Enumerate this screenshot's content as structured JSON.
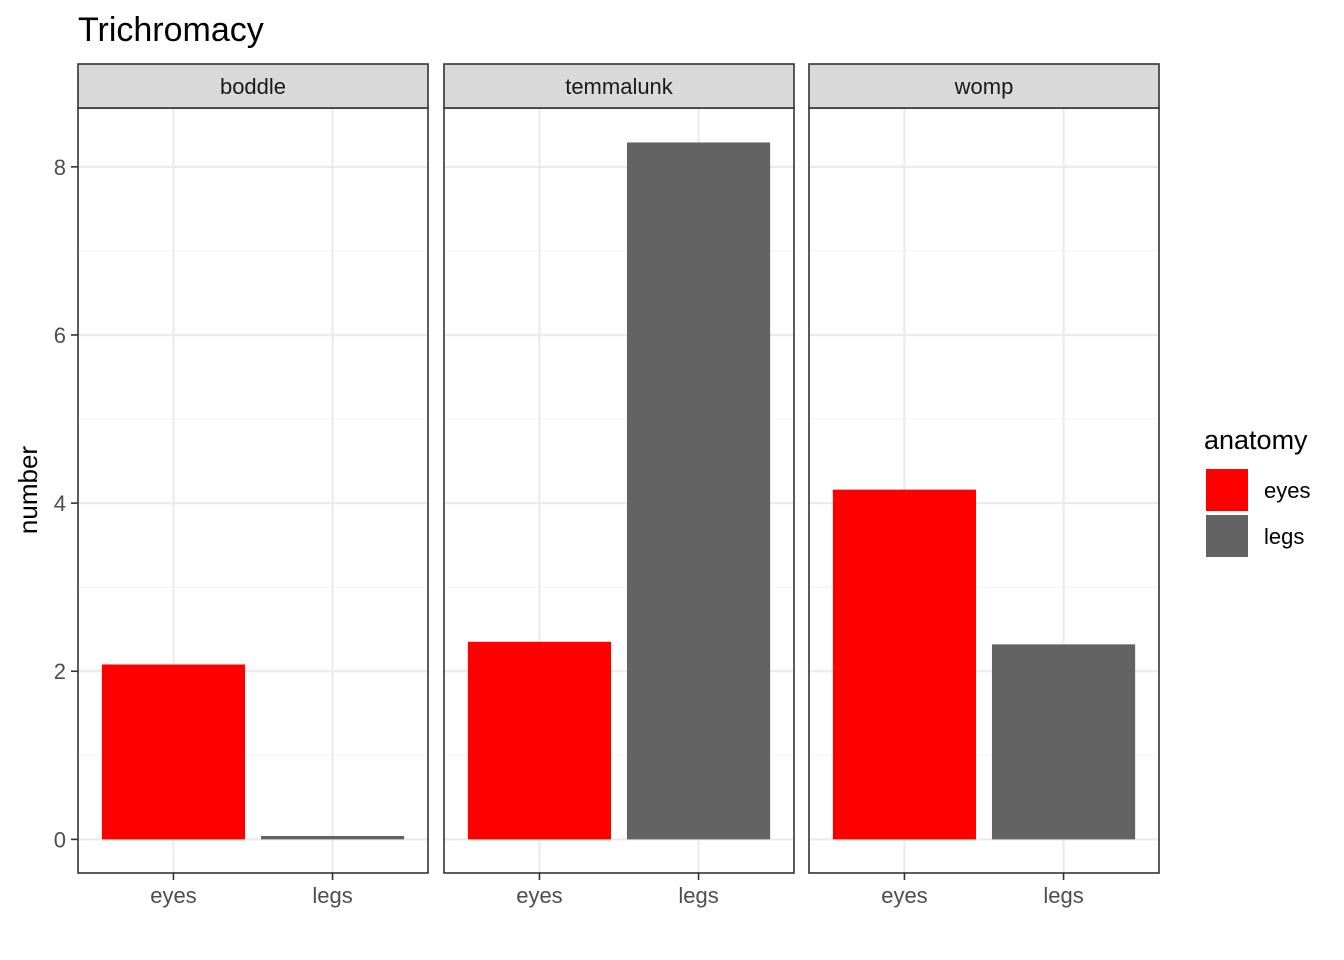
{
  "chart_data": {
    "type": "bar",
    "title": "Trichromacy",
    "xlabel": "",
    "ylabel": "number",
    "ylim": [
      -0.4,
      8.7
    ],
    "yticks": [
      0,
      2,
      4,
      6,
      8
    ],
    "categories": [
      "eyes",
      "legs"
    ],
    "facets": [
      {
        "name": "boddle",
        "values": [
          2.08,
          0.04
        ]
      },
      {
        "name": "temmalunk",
        "values": [
          2.35,
          8.29
        ]
      },
      {
        "name": "womp",
        "values": [
          4.16,
          2.32
        ]
      }
    ],
    "legend": {
      "title": "anatomy",
      "position": "right",
      "entries": [
        {
          "label": "eyes",
          "color": "#FF0000"
        },
        {
          "label": "legs",
          "color": "#636363"
        }
      ]
    },
    "grid": true,
    "theme": "bw",
    "colors": {
      "panel_border": "#333333",
      "strip_fill": "#D9D9D9",
      "grid_major": "#EBEBEB",
      "grid_minor": "#F4F4F4",
      "axis_text": "#4D4D4D"
    }
  }
}
